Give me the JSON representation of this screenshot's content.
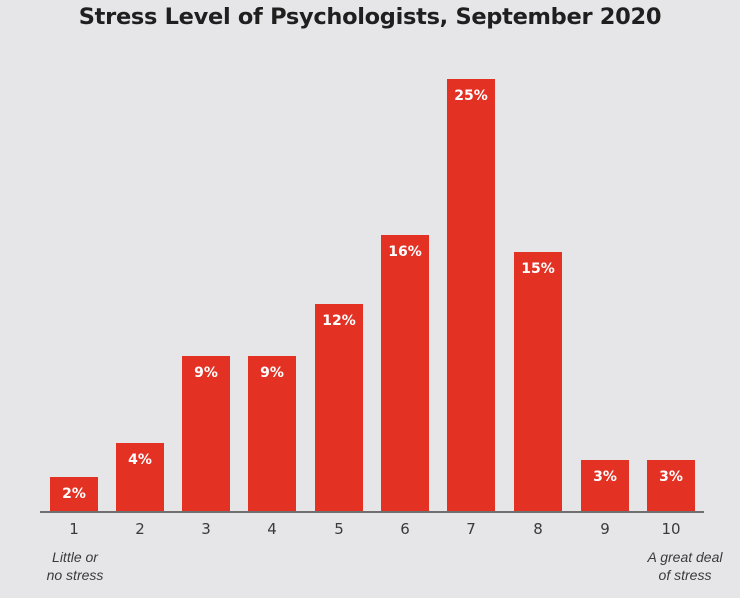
{
  "chart_data": {
    "type": "bar",
    "title": "Stress Level of Psychologists, September 2020",
    "categories": [
      "1",
      "2",
      "3",
      "4",
      "5",
      "6",
      "7",
      "8",
      "9",
      "10"
    ],
    "values": [
      2,
      4,
      9,
      9,
      12,
      16,
      25,
      15,
      3,
      3
    ],
    "value_labels": [
      "2%",
      "4%",
      "9%",
      "9%",
      "12%",
      "16%",
      "25%",
      "15%",
      "3%",
      "3%"
    ],
    "unit": "%",
    "xlabel": "",
    "ylabel": "",
    "ylim": [
      0,
      25
    ],
    "grid": false,
    "legend": null,
    "annotations": {
      "low_end": "Little or no stress",
      "high_end": "A great deal of stress"
    },
    "bar_color": "#e33124",
    "label_color": "#ffffff"
  },
  "annotations": {
    "low_line1": "Little or",
    "low_line2": "no stress",
    "high_line1": "A great deal",
    "high_line2": "of stress"
  }
}
